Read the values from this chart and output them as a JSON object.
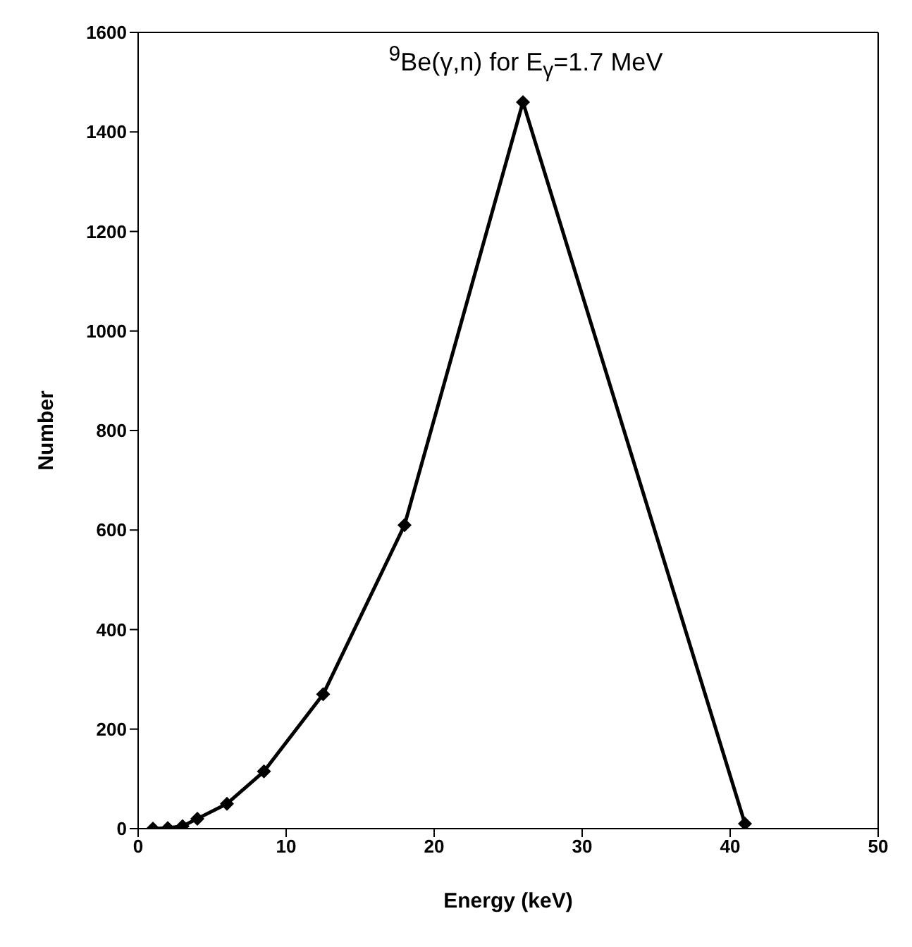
{
  "chart_data": {
    "type": "line",
    "title": "$^{9}$Be(γ,n) for E$_{γ}$=1.7 MeV",
    "xlabel": "Energy (keV)",
    "ylabel": "Number",
    "x": [
      1,
      2,
      3,
      4,
      6,
      8.5,
      12.5,
      18,
      26,
      41
    ],
    "series": [
      {
        "color": "#000000",
        "values": [
          0,
          1,
          5,
          20,
          50,
          115,
          270,
          610,
          1460,
          10
        ]
      }
    ],
    "xlim": [
      0,
      50
    ],
    "xticks": [
      0,
      10,
      20,
      30,
      40,
      50
    ],
    "ylim": [
      0,
      1600
    ],
    "yticks": [
      0,
      200,
      400,
      600,
      800,
      1000,
      1200,
      1400,
      1600
    ],
    "legend": false,
    "marker": "diamond",
    "line_style": "solid"
  }
}
